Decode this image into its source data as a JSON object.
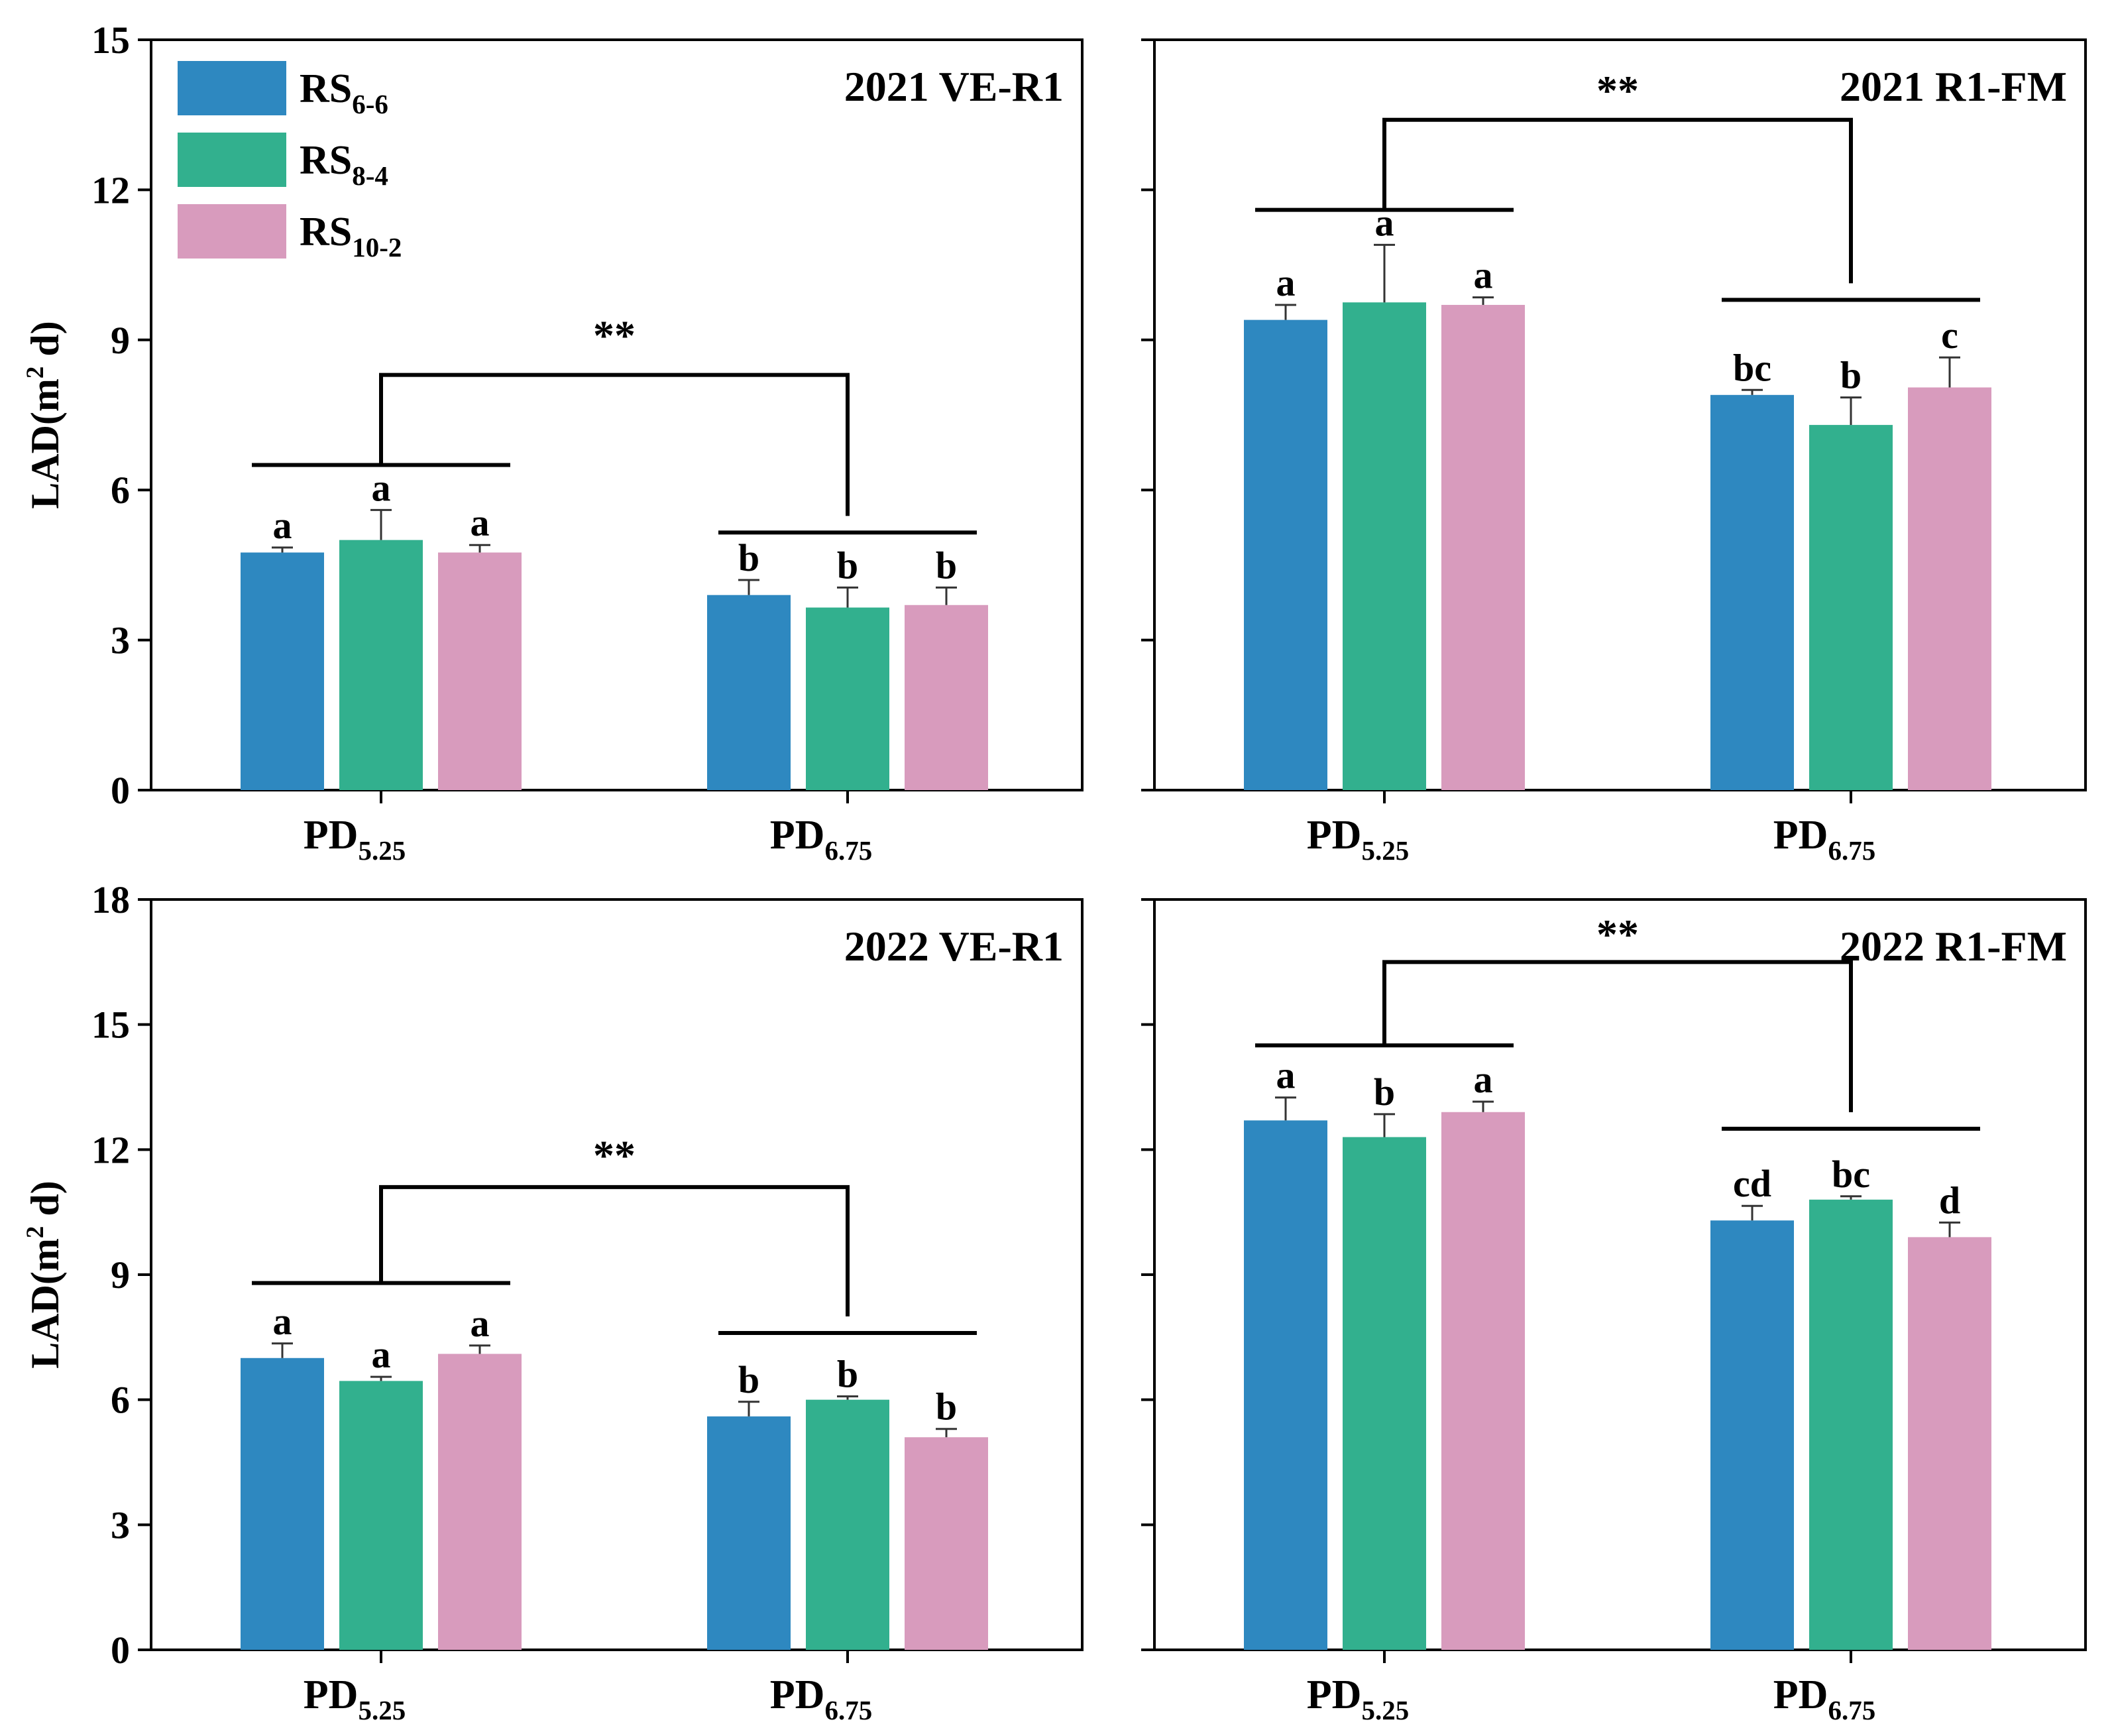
{
  "chart_data": {
    "type": "bar",
    "groups": [
      "PD5.25",
      "PD6.75"
    ],
    "series_names": [
      "RS6-6",
      "RS8-4",
      "RS10-2"
    ],
    "colors": {
      "RS6-6": "#2E88C0",
      "RS8-4": "#32B08E",
      "RS10-2": "#D89BBD"
    },
    "legend": [
      {
        "base": "RS",
        "sub": "6-6"
      },
      {
        "base": "RS",
        "sub": "8-4"
      },
      {
        "base": "RS",
        "sub": "10-2"
      }
    ],
    "xtick_labels": [
      {
        "base": "PD",
        "sub": "5.25"
      },
      {
        "base": "PD",
        "sub": "6.75"
      }
    ],
    "ylabel": {
      "pre": "LAD(m",
      "sup": "2",
      "post": " d)"
    },
    "significance_mark": "**",
    "panels": [
      {
        "title": "2021 VE-R1",
        "ylim": [
          0,
          15
        ],
        "yticks": [
          0,
          3,
          6,
          9,
          12,
          15
        ],
        "series": [
          {
            "name": "RS6-6",
            "values": [
              4.75,
              3.9
            ],
            "errors": [
              0.1,
              0.3
            ],
            "letters": [
              "a",
              "b"
            ]
          },
          {
            "name": "RS8-4",
            "values": [
              5.0,
              3.65
            ],
            "errors": [
              0.6,
              0.4
            ],
            "letters": [
              "a",
              "b"
            ]
          },
          {
            "name": "RS10-2",
            "values": [
              4.75,
              3.7
            ],
            "errors": [
              0.15,
              0.35
            ],
            "letters": [
              "a",
              "b"
            ]
          }
        ],
        "group_lines": [
          6.5,
          5.15
        ],
        "bracket_top": 8.3,
        "star_y": 9.2
      },
      {
        "title": "2021 R1-FM",
        "ylim": [
          0,
          15
        ],
        "yticks": [
          0,
          3,
          6,
          9,
          12,
          15
        ],
        "series": [
          {
            "name": "RS6-6",
            "values": [
              9.4,
              7.9
            ],
            "errors": [
              0.3,
              0.1
            ],
            "letters": [
              "a",
              "bc"
            ]
          },
          {
            "name": "RS8-4",
            "values": [
              9.75,
              7.3
            ],
            "errors": [
              1.15,
              0.55
            ],
            "letters": [
              "a",
              "b"
            ]
          },
          {
            "name": "RS10-2",
            "values": [
              9.7,
              8.05
            ],
            "errors": [
              0.15,
              0.6
            ],
            "letters": [
              "a",
              "c"
            ]
          }
        ],
        "group_lines": [
          11.6,
          9.8
        ],
        "bracket_top": 13.4,
        "star_y": 14.1
      },
      {
        "title": "2022 VE-R1",
        "ylim": [
          0,
          18
        ],
        "yticks": [
          0,
          3,
          6,
          9,
          12,
          15,
          18
        ],
        "series": [
          {
            "name": "RS6-6",
            "values": [
              7.0,
              5.6
            ],
            "errors": [
              0.35,
              0.35
            ],
            "letters": [
              "a",
              "b"
            ]
          },
          {
            "name": "RS8-4",
            "values": [
              6.45,
              6.0
            ],
            "errors": [
              0.1,
              0.08
            ],
            "letters": [
              "a",
              "b"
            ]
          },
          {
            "name": "RS10-2",
            "values": [
              7.1,
              5.1
            ],
            "errors": [
              0.2,
              0.2
            ],
            "letters": [
              "a",
              "b"
            ]
          }
        ],
        "group_lines": [
          8.8,
          7.6
        ],
        "bracket_top": 11.1,
        "star_y": 12.0
      },
      {
        "title": "2022 R1-FM",
        "ylim": [
          0,
          18
        ],
        "yticks": [
          0,
          3,
          6,
          9,
          12,
          15,
          18
        ],
        "series": [
          {
            "name": "RS6-6",
            "values": [
              12.7,
              10.3
            ],
            "errors": [
              0.55,
              0.35
            ],
            "letters": [
              "a",
              "cd"
            ]
          },
          {
            "name": "RS8-4",
            "values": [
              12.3,
              10.8
            ],
            "errors": [
              0.55,
              0.08
            ],
            "letters": [
              "b",
              "bc"
            ]
          },
          {
            "name": "RS10-2",
            "values": [
              12.9,
              9.9
            ],
            "errors": [
              0.25,
              0.35
            ],
            "letters": [
              "a",
              "d"
            ]
          }
        ],
        "group_lines": [
          14.5,
          12.5
        ],
        "bracket_top": 16.5,
        "star_y": 17.3
      }
    ]
  }
}
